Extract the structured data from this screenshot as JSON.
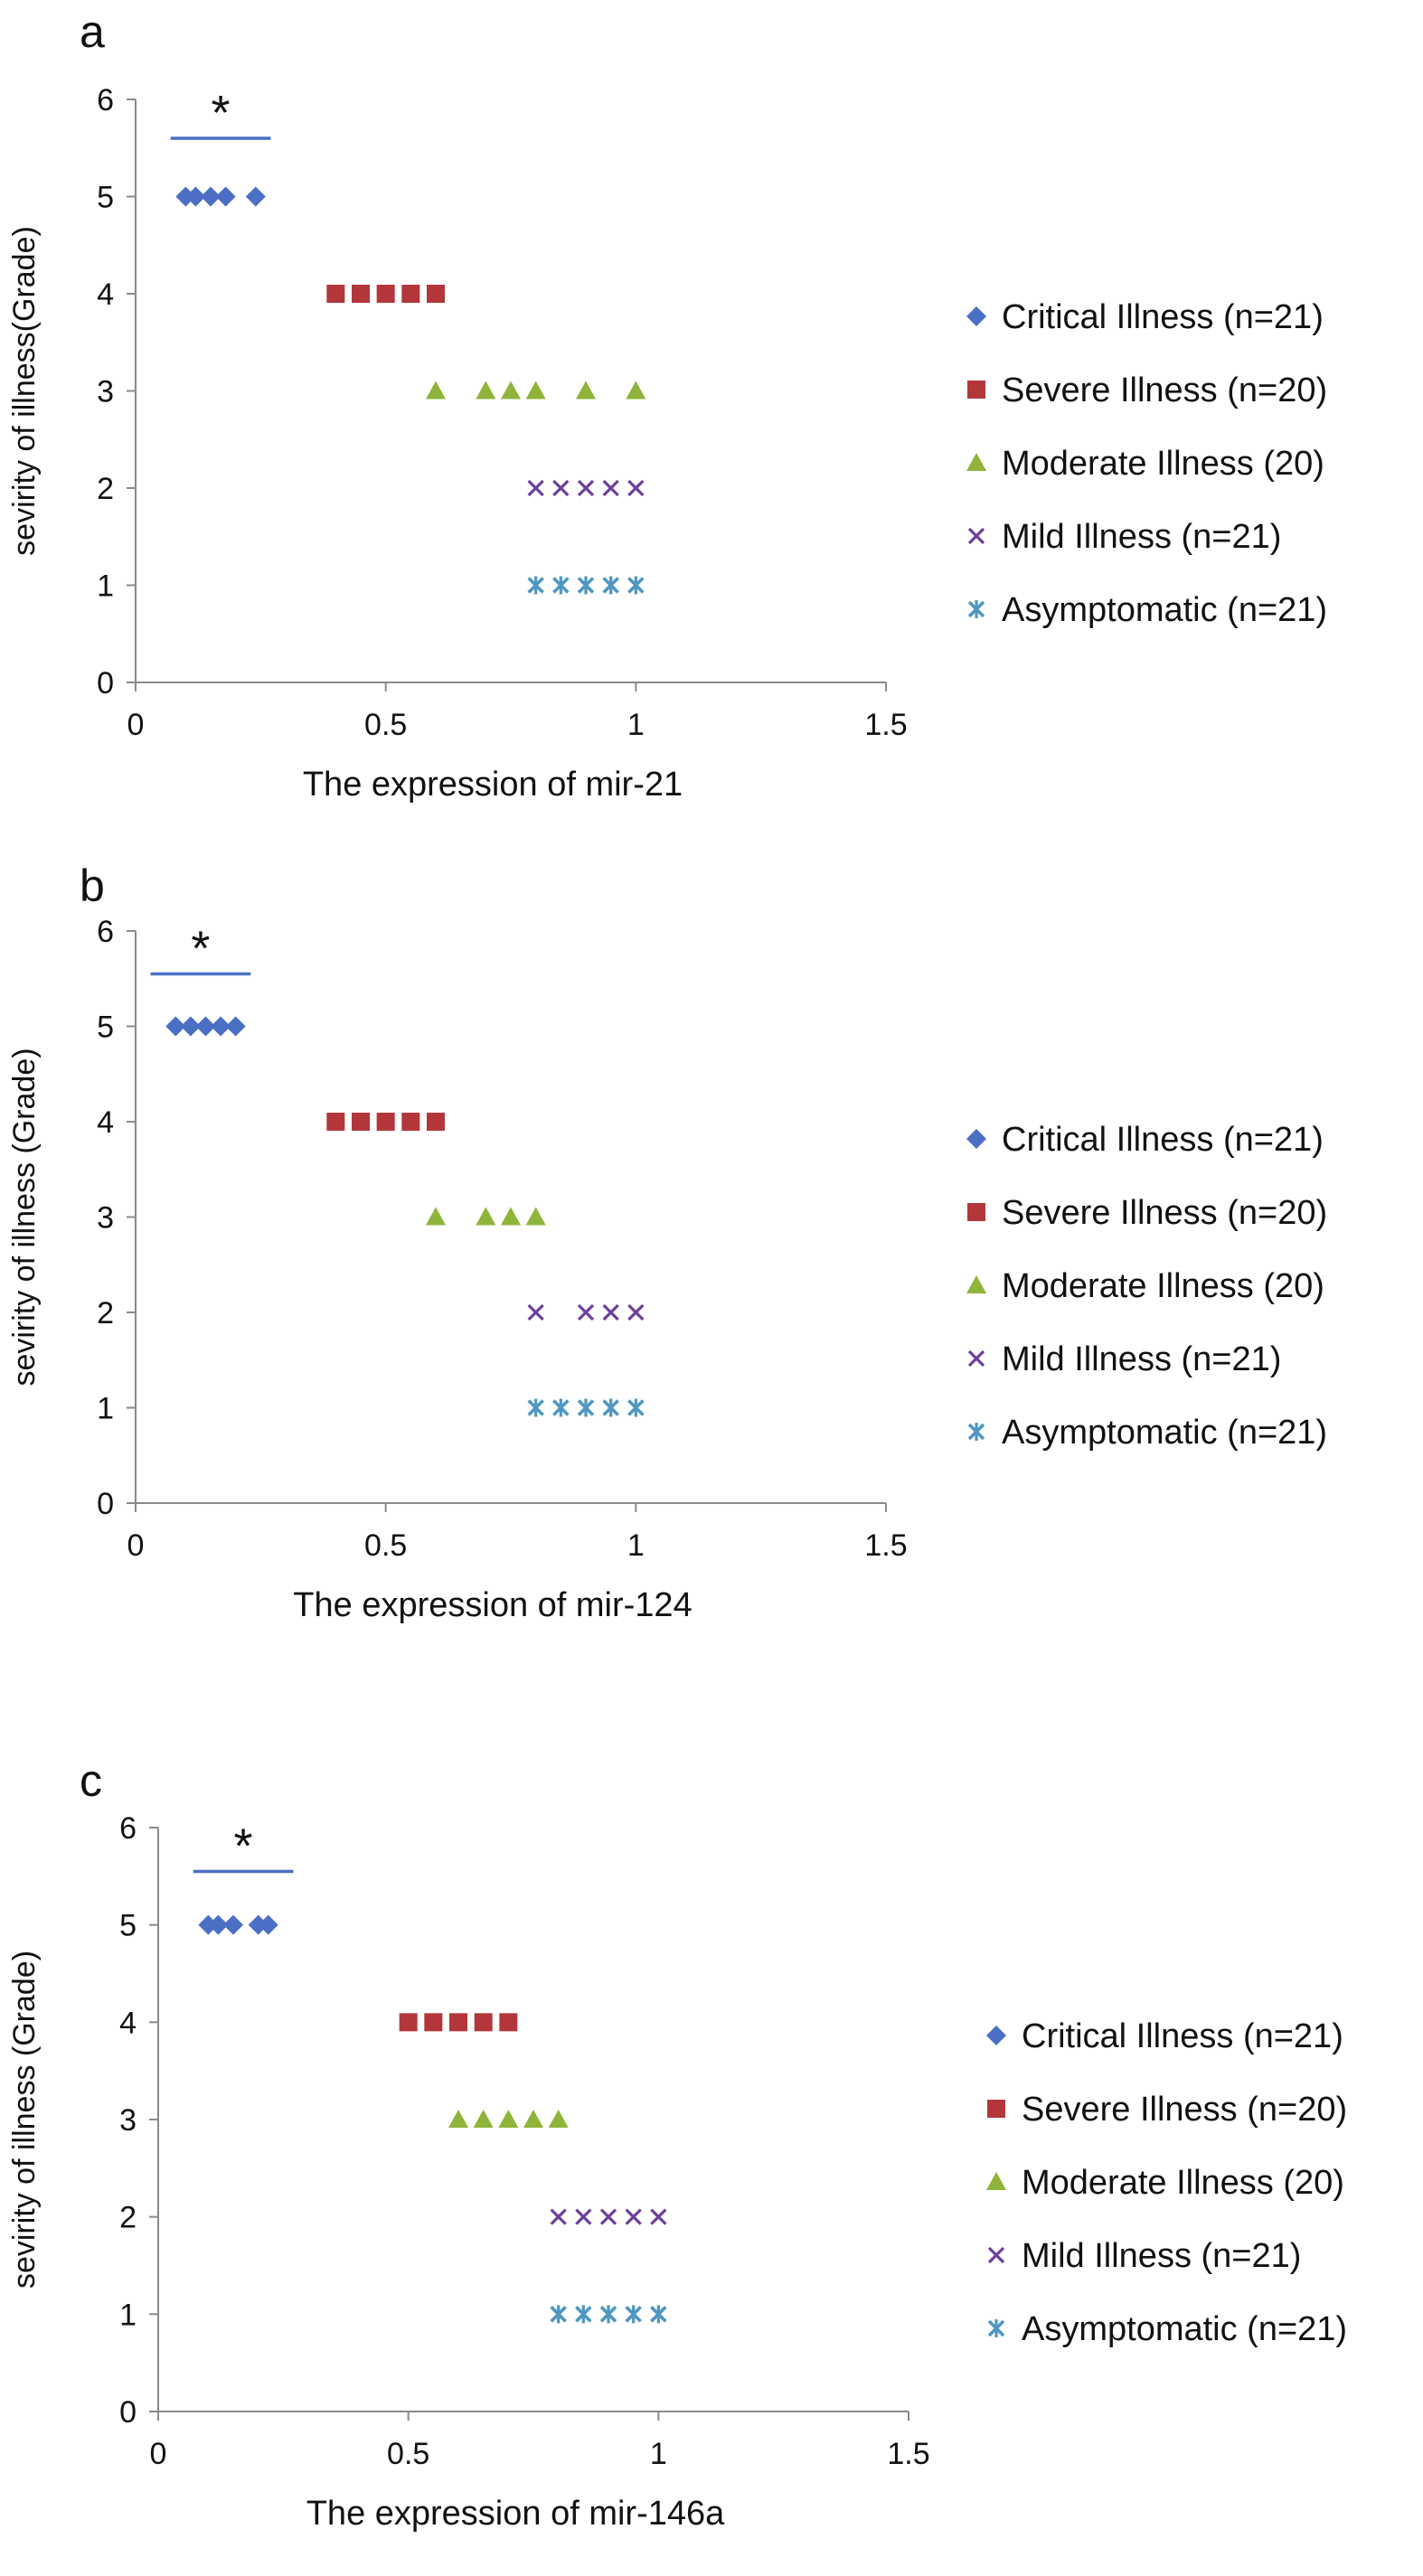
{
  "chart_data": [
    {
      "type": "scatter",
      "panel_label": "a",
      "xlabel": "The expression of mir-21",
      "ylabel": "sevirity of illness(Grade)",
      "xlim": [
        0,
        1.5
      ],
      "ylim": [
        0,
        6
      ],
      "x_ticks": [
        "0",
        "0.5",
        "1",
        "1.5"
      ],
      "y_ticks": [
        "0",
        "1",
        "2",
        "3",
        "4",
        "5",
        "6"
      ],
      "grid": false,
      "legend_position": "right",
      "annotation": {
        "text": "*",
        "line_x": [
          0.07,
          0.27
        ],
        "line_y": 5.6
      },
      "series": [
        {
          "name": "Critical Illness (n=21)",
          "marker": "diamond",
          "color": "#4a6fc4",
          "x": [
            0.1,
            0.12,
            0.15,
            0.18,
            0.24
          ],
          "y": [
            5,
            5,
            5,
            5,
            5
          ]
        },
        {
          "name": "Severe Illness (n=20)",
          "marker": "square",
          "color": "#b3363a",
          "x": [
            0.4,
            0.45,
            0.5,
            0.55,
            0.6
          ],
          "y": [
            4,
            4,
            4,
            4,
            4
          ]
        },
        {
          "name": "Moderate Illness (20)",
          "marker": "triangle",
          "color": "#8fb43a",
          "x": [
            0.6,
            0.7,
            0.75,
            0.8,
            0.9,
            1.0
          ],
          "y": [
            3,
            3,
            3,
            3,
            3,
            3
          ]
        },
        {
          "name": "Mild Illness (n=21)",
          "marker": "x",
          "color": "#6d3f9a",
          "x": [
            0.8,
            0.85,
            0.9,
            0.95,
            1.0
          ],
          "y": [
            2,
            2,
            2,
            2,
            2
          ]
        },
        {
          "name": "Asymptomatic (n=21)",
          "marker": "star",
          "color": "#4f97c1",
          "x": [
            0.8,
            0.85,
            0.9,
            0.95,
            1.0
          ],
          "y": [
            1,
            1,
            1,
            1,
            1
          ]
        }
      ]
    },
    {
      "type": "scatter",
      "panel_label": "b",
      "xlabel": "The expression of mir-124",
      "ylabel": "sevirity of illness (Grade)",
      "xlim": [
        0,
        1.5
      ],
      "ylim": [
        0,
        6
      ],
      "x_ticks": [
        "0",
        "0.5",
        "1",
        "1.5"
      ],
      "y_ticks": [
        "0",
        "1",
        "2",
        "3",
        "4",
        "5",
        "6"
      ],
      "grid": false,
      "legend_position": "right",
      "annotation": {
        "text": "*",
        "line_x": [
          0.03,
          0.23
        ],
        "line_y": 5.55
      },
      "series": [
        {
          "name": "Critical Illness (n=21)",
          "marker": "diamond",
          "color": "#4a6fc4",
          "x": [
            0.08,
            0.11,
            0.14,
            0.17,
            0.2
          ],
          "y": [
            5,
            5,
            5,
            5,
            5
          ]
        },
        {
          "name": "Severe Illness (n=20)",
          "marker": "square",
          "color": "#b3363a",
          "x": [
            0.4,
            0.45,
            0.5,
            0.55,
            0.6
          ],
          "y": [
            4,
            4,
            4,
            4,
            4
          ]
        },
        {
          "name": "Moderate Illness (20)",
          "marker": "triangle",
          "color": "#8fb43a",
          "x": [
            0.6,
            0.7,
            0.75,
            0.8
          ],
          "y": [
            3,
            3,
            3,
            3
          ]
        },
        {
          "name": "Mild Illness (n=21)",
          "marker": "x",
          "color": "#6d3f9a",
          "x": [
            0.8,
            0.9,
            0.95,
            1.0
          ],
          "y": [
            2,
            2,
            2,
            2
          ]
        },
        {
          "name": "Asymptomatic (n=21)",
          "marker": "star",
          "color": "#4f97c1",
          "x": [
            0.8,
            0.85,
            0.9,
            0.95,
            1.0
          ],
          "y": [
            1,
            1,
            1,
            1,
            1
          ]
        }
      ]
    },
    {
      "type": "scatter",
      "panel_label": "c",
      "xlabel": "The expression of mir-146a",
      "ylabel": "sevirity of illness (Grade)",
      "xlim": [
        0,
        1.5
      ],
      "ylim": [
        0,
        6
      ],
      "x_ticks": [
        "0",
        "0.5",
        "1",
        "1.5"
      ],
      "y_ticks": [
        "0",
        "1",
        "2",
        "3",
        "4",
        "5",
        "6"
      ],
      "grid": false,
      "legend_position": "right",
      "annotation": {
        "text": "*",
        "line_x": [
          0.07,
          0.27
        ],
        "line_y": 5.55
      },
      "series": [
        {
          "name": "Critical Illness (n=21)",
          "marker": "diamond",
          "color": "#4a6fc4",
          "x": [
            0.1,
            0.12,
            0.15,
            0.2,
            0.22
          ],
          "y": [
            5,
            5,
            5,
            5,
            5
          ]
        },
        {
          "name": "Severe Illness (n=20)",
          "marker": "square",
          "color": "#b3363a",
          "x": [
            0.5,
            0.55,
            0.6,
            0.65,
            0.7
          ],
          "y": [
            4,
            4,
            4,
            4,
            4
          ]
        },
        {
          "name": "Moderate Illness (20)",
          "marker": "triangle",
          "color": "#8fb43a",
          "x": [
            0.6,
            0.65,
            0.7,
            0.75,
            0.8
          ],
          "y": [
            3,
            3,
            3,
            3,
            3
          ]
        },
        {
          "name": "Mild Illness (n=21)",
          "marker": "x",
          "color": "#6d3f9a",
          "x": [
            0.8,
            0.85,
            0.9,
            0.95,
            1.0
          ],
          "y": [
            2,
            2,
            2,
            2,
            2
          ]
        },
        {
          "name": "Asymptomatic (n=21)",
          "marker": "star",
          "color": "#4f97c1",
          "x": [
            0.8,
            0.85,
            0.9,
            0.95,
            1.0
          ],
          "y": [
            1,
            1,
            1,
            1,
            1
          ]
        }
      ]
    }
  ]
}
